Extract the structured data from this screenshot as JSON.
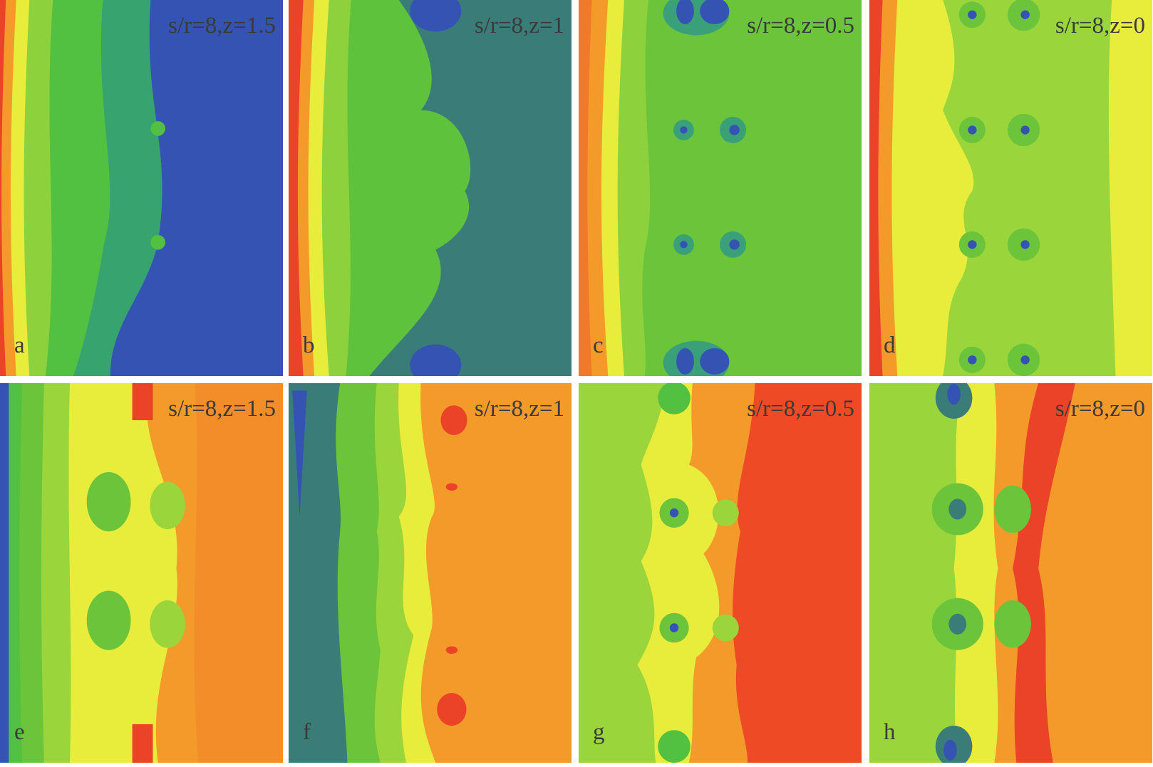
{
  "panels": [
    {
      "letter": "a",
      "label": "s/r=8,z=1.5"
    },
    {
      "letter": "b",
      "label": "s/r=8,z=1"
    },
    {
      "letter": "c",
      "label": "s/r=8,z=0.5"
    },
    {
      "letter": "d",
      "label": "s/r=8,z=0"
    },
    {
      "letter": "e",
      "label": "s/r=8,z=1.5"
    },
    {
      "letter": "f",
      "label": "s/r=8,z=1"
    },
    {
      "letter": "g",
      "label": "s/r=8,z=0.5"
    },
    {
      "letter": "h",
      "label": "s/r=8,z=0"
    }
  ]
}
